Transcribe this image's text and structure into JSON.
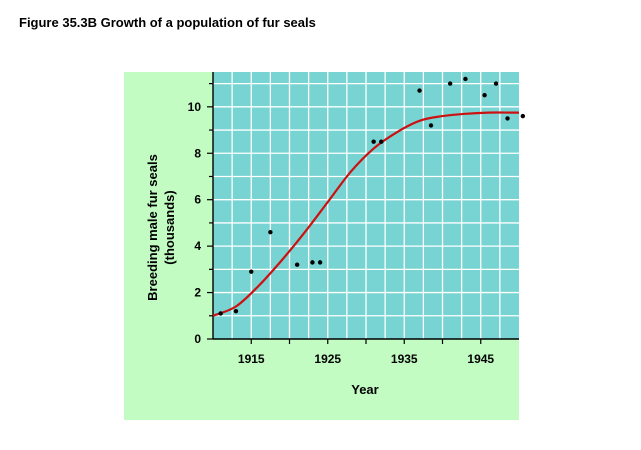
{
  "figure_title": "Figure 35.3B  Growth of a population of fur seals",
  "colors": {
    "panel": "#c2fcc2",
    "plot": "#78d3d3",
    "grid": "#ffffff",
    "curve": "#cc1111",
    "points": "#000000"
  },
  "chart_data": {
    "type": "scatter",
    "title": "",
    "xlabel": "Year",
    "ylabel": "Breeding male fur seals",
    "ylabel_sub": "(thousands)",
    "xlim": [
      1910,
      1950
    ],
    "ylim": [
      0,
      11.5
    ],
    "grid": true,
    "x_ticks": [
      1915,
      1925,
      1935,
      1945
    ],
    "x_tick_labels": [
      "1915",
      "1925",
      "1935",
      "1945"
    ],
    "x_minor_ticks": [
      1915,
      1920,
      1925,
      1930,
      1935,
      1940,
      1945
    ],
    "y_ticks": [
      0,
      2,
      4,
      6,
      8,
      10
    ],
    "y_tick_labels": [
      "0",
      "2",
      "4",
      "6",
      "8",
      "10"
    ],
    "series": [
      {
        "kind": "points",
        "x": [
          1911,
          1913,
          1915,
          1917.5,
          1921,
          1923,
          1924,
          1931,
          1932,
          1937,
          1938.5,
          1941,
          1943,
          1945.5,
          1947,
          1948.5,
          1950.5
        ],
        "y": [
          1.1,
          1.2,
          2.9,
          4.6,
          3.2,
          3.3,
          3.3,
          8.5,
          8.5,
          10.7,
          9.2,
          11.0,
          11.2,
          10.5,
          11.0,
          9.5,
          9.6
        ]
      },
      {
        "kind": "fitted_curve",
        "x": [
          1910,
          1913,
          1916,
          1919,
          1922,
          1925,
          1928,
          1931,
          1934,
          1937,
          1940,
          1943,
          1946,
          1949,
          1950
        ],
        "y": [
          1.0,
          1.4,
          2.3,
          3.4,
          4.6,
          5.9,
          7.2,
          8.2,
          8.9,
          9.4,
          9.6,
          9.7,
          9.75,
          9.75,
          9.75
        ]
      }
    ]
  }
}
